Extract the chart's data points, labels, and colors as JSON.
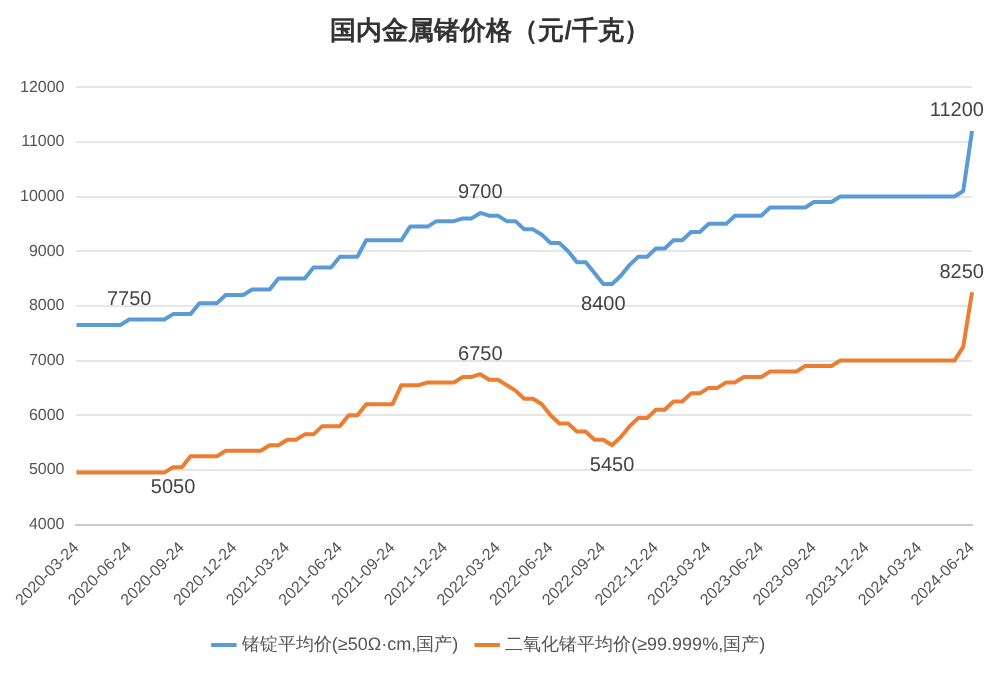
{
  "chart_data": {
    "type": "line",
    "title": "国内金属锗价格（元/千克）",
    "categories": [
      "2020-03-24",
      null,
      null,
      null,
      null,
      null,
      "2020-06-24",
      null,
      null,
      null,
      null,
      null,
      "2020-09-24",
      null,
      null,
      null,
      null,
      null,
      "2020-12-24",
      null,
      null,
      null,
      null,
      null,
      "2021-03-24",
      null,
      null,
      null,
      null,
      null,
      "2021-06-24",
      null,
      null,
      null,
      null,
      null,
      "2021-09-24",
      null,
      null,
      null,
      null,
      null,
      "2021-12-24",
      null,
      null,
      null,
      null,
      null,
      "2022-03-24",
      null,
      null,
      null,
      null,
      null,
      "2022-06-24",
      null,
      null,
      null,
      null,
      null,
      "2022-09-24",
      null,
      null,
      null,
      null,
      null,
      "2022-12-24",
      null,
      null,
      null,
      null,
      null,
      "2023-03-24",
      null,
      null,
      null,
      null,
      null,
      "2023-06-24",
      null,
      null,
      null,
      null,
      null,
      "2023-09-24",
      null,
      null,
      null,
      null,
      null,
      "2023-12-24",
      null,
      null,
      null,
      null,
      null,
      "2024-03-24",
      null,
      null,
      null,
      null,
      null,
      "2024-06-24"
    ],
    "series": [
      {
        "name": "锗锭平均价(≥50Ω·cm,国产)",
        "color": "#5b9bd5",
        "values": [
          7650,
          7650,
          7650,
          7650,
          7650,
          7650,
          7750,
          7750,
          7750,
          7750,
          7750,
          7850,
          7850,
          7850,
          8050,
          8050,
          8050,
          8200,
          8200,
          8200,
          8300,
          8300,
          8300,
          8500,
          8500,
          8500,
          8500,
          8700,
          8700,
          8700,
          8900,
          8900,
          8900,
          9200,
          9200,
          9200,
          9200,
          9200,
          9450,
          9450,
          9450,
          9550,
          9550,
          9550,
          9600,
          9600,
          9700,
          9650,
          9650,
          9550,
          9550,
          9400,
          9400,
          9300,
          9150,
          9150,
          9000,
          8800,
          8800,
          8600,
          8400,
          8400,
          8550,
          8750,
          8900,
          8900,
          9050,
          9050,
          9200,
          9200,
          9350,
          9350,
          9500,
          9500,
          9500,
          9650,
          9650,
          9650,
          9650,
          9800,
          9800,
          9800,
          9800,
          9800,
          9900,
          9900,
          9900,
          10000,
          10000,
          10000,
          10000,
          10000,
          10000,
          10000,
          10000,
          10000,
          10000,
          10000,
          10000,
          10000,
          10000,
          10100,
          11200
        ],
        "value_labels": [
          null,
          null,
          null,
          null,
          null,
          null,
          "7750",
          null,
          null,
          null,
          null,
          null,
          null,
          null,
          null,
          null,
          null,
          null,
          null,
          null,
          null,
          null,
          null,
          null,
          null,
          null,
          null,
          null,
          null,
          null,
          null,
          null,
          null,
          null,
          null,
          null,
          null,
          null,
          null,
          null,
          null,
          null,
          null,
          null,
          null,
          null,
          "9700",
          null,
          null,
          null,
          null,
          null,
          null,
          null,
          null,
          null,
          null,
          null,
          null,
          null,
          "8400",
          null,
          null,
          null,
          null,
          null,
          null,
          null,
          null,
          null,
          null,
          null,
          null,
          null,
          null,
          null,
          null,
          null,
          null,
          null,
          null,
          null,
          null,
          null,
          null,
          null,
          null,
          null,
          null,
          null,
          null,
          null,
          null,
          null,
          null,
          null,
          null,
          null,
          null,
          null,
          null,
          null,
          "11200"
        ]
      },
      {
        "name": "二氧化锗平均价(≥99.999%,国产)",
        "color": "#ed7d31",
        "values": [
          4950,
          4950,
          4950,
          4950,
          4950,
          4950,
          4950,
          4950,
          4950,
          4950,
          4950,
          5050,
          5050,
          5250,
          5250,
          5250,
          5250,
          5350,
          5350,
          5350,
          5350,
          5350,
          5450,
          5450,
          5550,
          5550,
          5650,
          5650,
          5800,
          5800,
          5800,
          6000,
          6000,
          6200,
          6200,
          6200,
          6200,
          6550,
          6550,
          6550,
          6600,
          6600,
          6600,
          6600,
          6700,
          6700,
          6750,
          6650,
          6650,
          6550,
          6450,
          6300,
          6300,
          6200,
          6000,
          5850,
          5850,
          5700,
          5700,
          5550,
          5550,
          5450,
          5600,
          5800,
          5950,
          5950,
          6100,
          6100,
          6250,
          6250,
          6400,
          6400,
          6500,
          6500,
          6600,
          6600,
          6700,
          6700,
          6700,
          6800,
          6800,
          6800,
          6800,
          6900,
          6900,
          6900,
          6900,
          7000,
          7000,
          7000,
          7000,
          7000,
          7000,
          7000,
          7000,
          7000,
          7000,
          7000,
          7000,
          7000,
          7000,
          7250,
          8250
        ],
        "value_labels": [
          null,
          null,
          null,
          null,
          null,
          null,
          null,
          null,
          null,
          null,
          null,
          "5050",
          null,
          null,
          null,
          null,
          null,
          null,
          null,
          null,
          null,
          null,
          null,
          null,
          null,
          null,
          null,
          null,
          null,
          null,
          null,
          null,
          null,
          null,
          null,
          null,
          null,
          null,
          null,
          null,
          null,
          null,
          null,
          null,
          null,
          null,
          "6750",
          null,
          null,
          null,
          null,
          null,
          null,
          null,
          null,
          null,
          null,
          null,
          null,
          null,
          null,
          "5450",
          null,
          null,
          null,
          null,
          null,
          null,
          null,
          null,
          null,
          null,
          null,
          null,
          null,
          null,
          null,
          null,
          null,
          null,
          null,
          null,
          null,
          null,
          null,
          null,
          null,
          null,
          null,
          null,
          null,
          null,
          null,
          null,
          null,
          null,
          null,
          null,
          null,
          null,
          null,
          null,
          "8250"
        ]
      }
    ],
    "ylim": [
      4000,
      12000
    ],
    "yticks": [
      4000,
      5000,
      6000,
      7000,
      8000,
      9000,
      10000,
      11000,
      12000
    ],
    "grid": "y",
    "legend": "bottom",
    "marker": "none",
    "line_style": "solid"
  }
}
